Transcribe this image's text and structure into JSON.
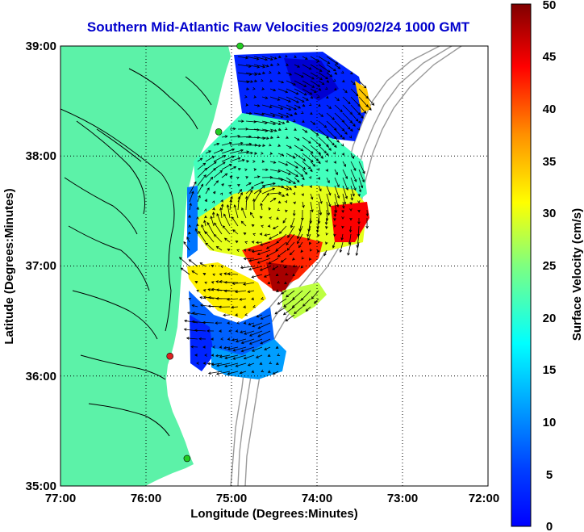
{
  "title": "Southern Mid-Atlantic Raw Velocities 2009/02/24 1000 GMT",
  "x_axis": {
    "label": "Longitude (Degrees:Minutes)",
    "ticks": [
      "77:00",
      "76:00",
      "75:00",
      "74:00",
      "73:00",
      "72:00"
    ],
    "range": [
      -77,
      -72
    ]
  },
  "y_axis": {
    "label": "Latitude (Degrees:Minutes)",
    "ticks": [
      "39:00",
      "38:00",
      "37:00",
      "36:00",
      "35:00"
    ],
    "range": [
      35,
      39
    ]
  },
  "colorbar": {
    "label": "Surface Velocity (cm/s)",
    "ticks": [
      "50",
      "45",
      "40",
      "35",
      "30",
      "25",
      "20",
      "15",
      "10",
      "5",
      "0"
    ],
    "range": [
      0,
      50
    ],
    "colormap": "jet"
  },
  "grid": "dotted",
  "colors": {
    "title": "#0000cc",
    "land": "#5cf2a8",
    "coastline": "#000000",
    "bathymetry": "#9a9a9a",
    "station_active": "#22cc22",
    "station_inactive": "#dd2222"
  },
  "stations": [
    {
      "status": "active",
      "lon": -74.9,
      "lat": 39.0
    },
    {
      "status": "active",
      "lon": -75.15,
      "lat": 38.22
    },
    {
      "status": "inactive",
      "lon": -75.72,
      "lat": 36.18
    },
    {
      "status": "active",
      "lon": -75.52,
      "lat": 35.25
    }
  ]
}
